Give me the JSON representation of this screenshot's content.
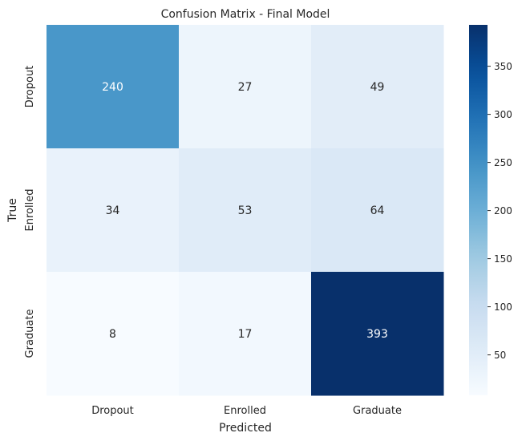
{
  "chart_data": {
    "type": "heatmap",
    "title": "Confusion Matrix - Final Model",
    "xlabel": "Predicted",
    "ylabel": "True",
    "x_categories": [
      "Dropout",
      "Enrolled",
      "Graduate"
    ],
    "y_categories": [
      "Dropout",
      "Enrolled",
      "Graduate"
    ],
    "values": [
      [
        240,
        27,
        49
      ],
      [
        34,
        53,
        64
      ],
      [
        8,
        17,
        393
      ]
    ],
    "colormap": "Blues",
    "colorbar": {
      "range": [
        8,
        393
      ],
      "ticks": [
        50,
        100,
        150,
        200,
        250,
        300,
        350
      ]
    }
  }
}
